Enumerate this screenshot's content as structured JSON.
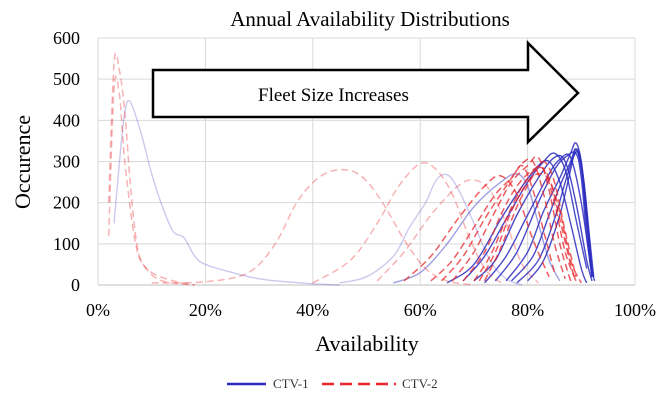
{
  "chart_data": {
    "type": "line",
    "title": "Annual Availability Distributions",
    "xlabel": "Availability",
    "ylabel": "Occurence",
    "xlim": [
      0,
      100
    ],
    "ylim": [
      0,
      600
    ],
    "x_ticks": [
      "0%",
      "20%",
      "40%",
      "60%",
      "80%",
      "100%"
    ],
    "y_ticks": [
      "0",
      "100",
      "200",
      "300",
      "400",
      "500",
      "600"
    ],
    "grid": true,
    "legend_position": "bottom",
    "annotation": "Fleet Size Increases",
    "colors": {
      "CTV-1": "#2b2bc0",
      "CTV-2": "#e8262b"
    },
    "series": [
      {
        "name": "CTV-1",
        "style": "solid",
        "points": [
          [
            3,
            150
          ],
          [
            4,
            300
          ],
          [
            5,
            420
          ],
          [
            6,
            445
          ],
          [
            8,
            370
          ],
          [
            10,
            270
          ],
          [
            12,
            190
          ],
          [
            14,
            130
          ],
          [
            16,
            115
          ],
          [
            18,
            70
          ],
          [
            20,
            50
          ],
          [
            25,
            30
          ],
          [
            30,
            15
          ],
          [
            35,
            8
          ],
          [
            40,
            3
          ],
          [
            45,
            0
          ]
        ]
      },
      {
        "style": "solid",
        "points": [
          [
            45,
            5
          ],
          [
            50,
            20
          ],
          [
            55,
            70
          ],
          [
            58,
            140
          ],
          [
            61,
            200
          ],
          [
            63,
            255
          ],
          [
            65,
            268
          ],
          [
            67,
            235
          ],
          [
            70,
            150
          ],
          [
            73,
            60
          ],
          [
            76,
            15
          ],
          [
            79,
            0
          ]
        ]
      },
      {
        "style": "solid",
        "points": [
          [
            55,
            5
          ],
          [
            60,
            30
          ],
          [
            65,
            100
          ],
          [
            70,
            190
          ],
          [
            75,
            250
          ],
          [
            78,
            270
          ],
          [
            80,
            240
          ],
          [
            82,
            150
          ],
          [
            84,
            60
          ],
          [
            86,
            10
          ]
        ]
      },
      {
        "style": "solid",
        "points": [
          [
            65,
            5
          ],
          [
            70,
            50
          ],
          [
            75,
            160
          ],
          [
            79,
            240
          ],
          [
            82,
            290
          ],
          [
            84,
            300
          ],
          [
            86,
            250
          ],
          [
            88,
            150
          ],
          [
            90,
            40
          ],
          [
            91,
            5
          ]
        ]
      },
      {
        "style": "solid",
        "points": [
          [
            68,
            10
          ],
          [
            72,
            70
          ],
          [
            76,
            160
          ],
          [
            80,
            250
          ],
          [
            83,
            300
          ],
          [
            85,
            320
          ],
          [
            87,
            280
          ],
          [
            89,
            160
          ],
          [
            91,
            40
          ]
        ]
      },
      {
        "style": "solid",
        "points": [
          [
            70,
            10
          ],
          [
            74,
            60
          ],
          [
            78,
            170
          ],
          [
            82,
            260
          ],
          [
            85,
            310
          ],
          [
            87,
            300
          ],
          [
            89,
            200
          ],
          [
            91,
            60
          ],
          [
            92,
            10
          ]
        ]
      },
      {
        "style": "solid",
        "points": [
          [
            72,
            5
          ],
          [
            76,
            70
          ],
          [
            80,
            170
          ],
          [
            84,
            270
          ],
          [
            86,
            305
          ],
          [
            88,
            310
          ],
          [
            90,
            200
          ],
          [
            92,
            20
          ]
        ]
      },
      {
        "style": "solid",
        "points": [
          [
            74,
            10
          ],
          [
            78,
            80
          ],
          [
            82,
            200
          ],
          [
            85,
            280
          ],
          [
            87,
            310
          ],
          [
            89,
            320
          ],
          [
            90,
            260
          ],
          [
            91,
            120
          ],
          [
            92,
            20
          ]
        ]
      },
      {
        "style": "solid",
        "points": [
          [
            76,
            10
          ],
          [
            80,
            80
          ],
          [
            83,
            180
          ],
          [
            86,
            260
          ],
          [
            88,
            320
          ],
          [
            89,
            345
          ],
          [
            90,
            300
          ],
          [
            91,
            180
          ],
          [
            92,
            40
          ],
          [
            92.5,
            10
          ]
        ]
      },
      {
        "style": "solid",
        "points": [
          [
            77,
            10
          ],
          [
            81,
            70
          ],
          [
            84,
            170
          ],
          [
            86,
            240
          ],
          [
            88,
            300
          ],
          [
            89,
            330
          ],
          [
            90,
            280
          ],
          [
            91,
            150
          ],
          [
            92,
            30
          ]
        ]
      },
      {
        "style": "solid",
        "points": [
          [
            78,
            5
          ],
          [
            82,
            60
          ],
          [
            85,
            160
          ],
          [
            87,
            250
          ],
          [
            88.5,
            310
          ],
          [
            89.5,
            320
          ],
          [
            90.5,
            250
          ],
          [
            91.5,
            120
          ],
          [
            92.3,
            20
          ]
        ]
      },
      {
        "style": "solid",
        "points": [
          [
            80,
            10
          ],
          [
            83,
            60
          ],
          [
            86,
            170
          ],
          [
            88,
            280
          ],
          [
            89,
            330
          ],
          [
            90,
            295
          ],
          [
            91,
            160
          ],
          [
            92,
            20
          ]
        ]
      },
      {
        "name": "CTV-2",
        "style": "dashed",
        "points": [
          [
            2,
            200
          ],
          [
            3,
            540
          ],
          [
            4,
            520
          ],
          [
            5,
            420
          ],
          [
            6,
            250
          ],
          [
            7,
            120
          ],
          [
            8,
            60
          ],
          [
            10,
            30
          ],
          [
            14,
            10
          ],
          [
            18,
            0
          ]
        ]
      },
      {
        "style": "dashed",
        "points": [
          [
            2,
            120
          ],
          [
            3,
            480
          ],
          [
            4,
            460
          ],
          [
            5,
            300
          ],
          [
            7,
            100
          ],
          [
            9,
            40
          ],
          [
            12,
            10
          ],
          [
            18,
            0
          ]
        ]
      },
      {
        "style": "dashed",
        "points": [
          [
            10,
            5
          ],
          [
            20,
            8
          ],
          [
            28,
            30
          ],
          [
            33,
            100
          ],
          [
            37,
            200
          ],
          [
            41,
            260
          ],
          [
            45,
            280
          ],
          [
            49,
            265
          ],
          [
            53,
            200
          ],
          [
            57,
            110
          ],
          [
            61,
            40
          ],
          [
            65,
            10
          ],
          [
            70,
            0
          ]
        ]
      },
      {
        "style": "dashed",
        "points": [
          [
            40,
            5
          ],
          [
            47,
            60
          ],
          [
            52,
            150
          ],
          [
            56,
            240
          ],
          [
            60,
            295
          ],
          [
            63,
            280
          ],
          [
            66,
            220
          ],
          [
            69,
            120
          ],
          [
            72,
            40
          ],
          [
            75,
            5
          ]
        ]
      },
      {
        "style": "dashed",
        "points": [
          [
            52,
            10
          ],
          [
            57,
            80
          ],
          [
            62,
            170
          ],
          [
            67,
            240
          ],
          [
            70,
            255
          ],
          [
            73,
            230
          ],
          [
            76,
            150
          ],
          [
            79,
            50
          ],
          [
            82,
            5
          ]
        ]
      },
      {
        "style": "dashed",
        "points": [
          [
            57,
            10
          ],
          [
            62,
            70
          ],
          [
            67,
            160
          ],
          [
            72,
            240
          ],
          [
            75,
            265
          ],
          [
            78,
            220
          ],
          [
            81,
            110
          ],
          [
            84,
            20
          ]
        ]
      },
      {
        "style": "dashed",
        "points": [
          [
            62,
            10
          ],
          [
            66,
            60
          ],
          [
            70,
            140
          ],
          [
            74,
            220
          ],
          [
            77,
            260
          ],
          [
            79,
            290
          ],
          [
            81,
            230
          ],
          [
            83,
            130
          ],
          [
            85,
            30
          ]
        ]
      },
      {
        "style": "dashed",
        "points": [
          [
            64,
            10
          ],
          [
            68,
            70
          ],
          [
            72,
            160
          ],
          [
            76,
            240
          ],
          [
            79,
            295
          ],
          [
            81,
            300
          ],
          [
            83,
            220
          ],
          [
            85,
            100
          ],
          [
            87,
            15
          ]
        ]
      },
      {
        "style": "dashed",
        "points": [
          [
            66,
            10
          ],
          [
            70,
            80
          ],
          [
            74,
            180
          ],
          [
            77,
            250
          ],
          [
            80,
            290
          ],
          [
            82,
            310
          ],
          [
            84,
            230
          ],
          [
            86,
            100
          ],
          [
            88,
            10
          ]
        ]
      },
      {
        "style": "dashed",
        "points": [
          [
            68,
            10
          ],
          [
            72,
            80
          ],
          [
            75,
            170
          ],
          [
            78,
            240
          ],
          [
            81,
            280
          ],
          [
            83,
            280
          ],
          [
            85,
            200
          ],
          [
            87,
            80
          ],
          [
            89,
            10
          ]
        ]
      },
      {
        "style": "dashed",
        "points": [
          [
            70,
            10
          ],
          [
            73,
            70
          ],
          [
            76,
            160
          ],
          [
            79,
            240
          ],
          [
            82,
            285
          ],
          [
            84,
            260
          ],
          [
            86,
            160
          ],
          [
            88,
            50
          ],
          [
            89,
            10
          ]
        ]
      },
      {
        "style": "dashed",
        "points": [
          [
            71,
            10
          ],
          [
            74,
            80
          ],
          [
            77,
            180
          ],
          [
            80,
            250
          ],
          [
            82,
            270
          ],
          [
            84,
            255
          ],
          [
            86,
            180
          ],
          [
            88,
            60
          ],
          [
            90,
            5
          ]
        ]
      },
      {
        "style": "dashed",
        "points": [
          [
            72,
            10
          ],
          [
            75,
            90
          ],
          [
            78,
            190
          ],
          [
            81,
            265
          ],
          [
            83,
            300
          ],
          [
            85,
            250
          ],
          [
            87,
            130
          ],
          [
            89,
            20
          ]
        ]
      }
    ]
  }
}
